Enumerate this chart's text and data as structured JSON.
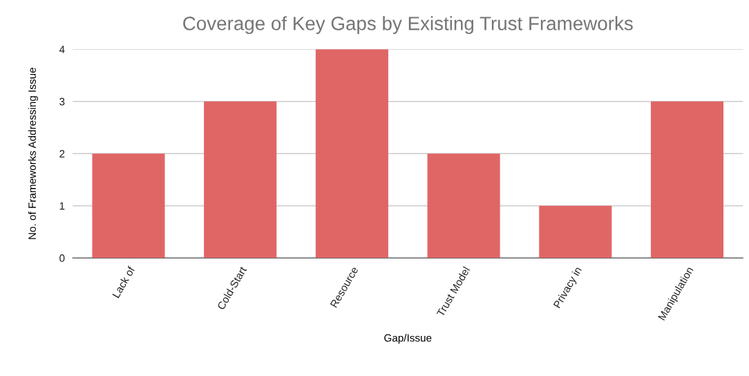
{
  "chart_data": {
    "type": "bar",
    "title": "Coverage of Key Gaps by Existing Trust Frameworks",
    "xlabel": "Gap/Issue",
    "ylabel": "No. of Frameworks Addressing Issue",
    "categories": [
      "Lack of",
      "Cold-Start",
      "Resource",
      "Trust Model",
      "Privacy in",
      "Manipulation"
    ],
    "values": [
      2,
      3,
      4,
      2,
      1,
      3
    ],
    "color": "#e06666",
    "ylim": [
      0,
      4
    ],
    "yticks": [
      0,
      1,
      2,
      3,
      4
    ],
    "grid": "y",
    "legend": false
  }
}
